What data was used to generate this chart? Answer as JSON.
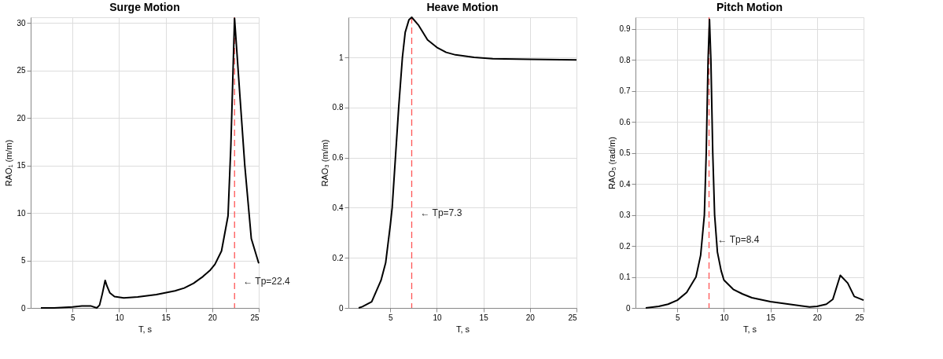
{
  "chart_data": [
    {
      "type": "line",
      "title": "Surge Motion",
      "xlabel": "T, s",
      "ylabel": "RAO₁ (m/m)",
      "xlim": [
        0.5,
        25
      ],
      "xticks": [
        5,
        10,
        15,
        20,
        25
      ],
      "ylim": [
        0,
        30.6
      ],
      "yticks": [
        0,
        5,
        10,
        15,
        20,
        25,
        30
      ],
      "grid": true,
      "line_style": "solid",
      "marker": "none",
      "x": [
        1.6,
        3,
        5,
        6,
        7,
        7.6,
        7.9,
        8.2,
        8.5,
        8.7,
        9,
        9.5,
        10.5,
        12,
        14,
        16,
        17,
        18,
        19,
        19.8,
        20.3,
        21,
        21.7,
        22,
        22.4,
        23,
        23.5,
        24.2,
        25
      ],
      "series": [
        {
          "color": "#000000",
          "values": [
            0,
            0,
            0.1,
            0.2,
            0.2,
            0,
            0.3,
            1.5,
            2.9,
            2.3,
            1.6,
            1.2,
            1.05,
            1.15,
            1.4,
            1.8,
            2.1,
            2.6,
            3.3,
            4.0,
            4.6,
            6.0,
            9.7,
            17,
            30.5,
            22,
            15,
            7.3,
            4.7
          ]
        }
      ],
      "ref_lines": [
        {
          "axis": "x",
          "value": 22.4,
          "color": "#ff5555",
          "line_style": "dashed"
        }
      ],
      "annotations": [
        {
          "text": "← Tp=22.4",
          "x": 22.4,
          "y": 2.8
        }
      ]
    },
    {
      "type": "line",
      "title": "Heave Motion",
      "xlabel": "T, s",
      "ylabel": "RAO₃ (m/m)",
      "xlim": [
        0.5,
        25
      ],
      "xticks": [
        5,
        10,
        15,
        20,
        25
      ],
      "ylim": [
        0,
        1.16
      ],
      "yticks": [
        0,
        0.2,
        0.4,
        0.6,
        0.8,
        1
      ],
      "grid": true,
      "line_style": "solid",
      "marker": "none",
      "x": [
        1.6,
        2,
        3,
        4,
        4.5,
        5,
        5.2,
        5.55,
        5.9,
        6.3,
        6.6,
        7,
        7.3,
        8,
        9,
        10,
        11,
        12,
        14,
        16,
        20,
        25
      ],
      "series": [
        {
          "color": "#000000",
          "values": [
            0,
            0.005,
            0.025,
            0.11,
            0.18,
            0.33,
            0.4,
            0.6,
            0.8,
            1.0,
            1.1,
            1.15,
            1.16,
            1.13,
            1.07,
            1.04,
            1.02,
            1.01,
            1.0,
            0.995,
            0.992,
            0.99
          ]
        }
      ],
      "ref_lines": [
        {
          "axis": "x",
          "value": 7.3,
          "color": "#ff5555",
          "line_style": "dashed"
        }
      ],
      "annotations": [
        {
          "text": "← Tp=7.3",
          "x": 7.3,
          "y": 0.38
        }
      ]
    },
    {
      "type": "line",
      "title": "Pitch Motion",
      "xlabel": "T, s",
      "ylabel": "RAO₅ (rad/m)",
      "xlim": [
        0.5,
        25
      ],
      "xticks": [
        5,
        10,
        15,
        20,
        25
      ],
      "ylim": [
        0,
        0.937
      ],
      "yticks": [
        0,
        0.1,
        0.2,
        0.3,
        0.4,
        0.5,
        0.6,
        0.7,
        0.8,
        0.9
      ],
      "grid": true,
      "line_style": "solid",
      "marker": "none",
      "x": [
        1.6,
        3,
        4,
        5,
        6,
        7,
        7.5,
        7.9,
        8.1,
        8.3,
        8.45,
        8.6,
        8.8,
        9,
        9.3,
        9.7,
        10,
        11,
        12,
        13,
        15,
        17,
        19.2,
        20,
        21,
        21.7,
        22.5,
        23.3,
        24,
        25
      ],
      "series": [
        {
          "color": "#000000",
          "values": [
            0,
            0.005,
            0.012,
            0.025,
            0.05,
            0.1,
            0.17,
            0.3,
            0.5,
            0.8,
            0.93,
            0.8,
            0.5,
            0.3,
            0.18,
            0.12,
            0.09,
            0.06,
            0.045,
            0.033,
            0.02,
            0.012,
            0.003,
            0.005,
            0.012,
            0.028,
            0.105,
            0.08,
            0.037,
            0.025
          ]
        }
      ],
      "ref_lines": [
        {
          "axis": "x",
          "value": 8.4,
          "color": "#ff5555",
          "line_style": "dashed"
        }
      ],
      "annotations": [
        {
          "text": "← Tp=8.4",
          "x": 8.4,
          "y": 0.22
        }
      ]
    }
  ]
}
